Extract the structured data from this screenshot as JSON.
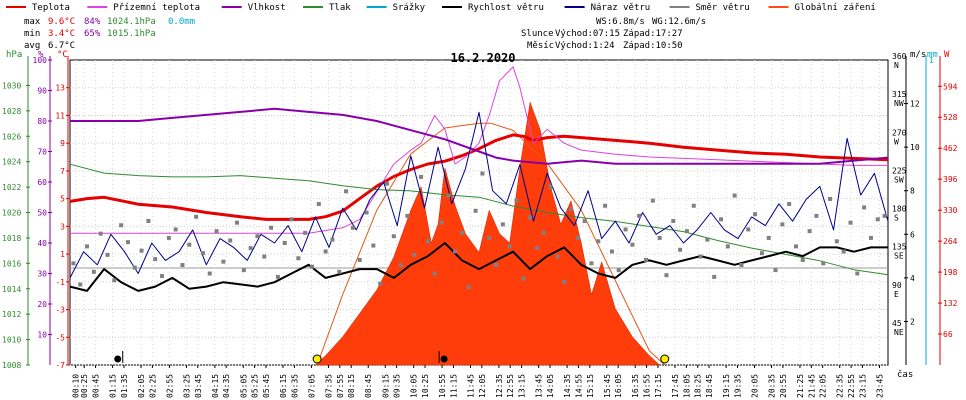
{
  "chart_data": {
    "type": "line",
    "title": "16.2.2020",
    "xlabel": "čas",
    "legend": [
      {
        "name": "Teplota",
        "color": "#e60000"
      },
      {
        "name": "Přízemní teplota",
        "color": "#dd44dd"
      },
      {
        "name": "Vlhkost",
        "color": "#8800aa"
      },
      {
        "name": "Tlak",
        "color": "#2e8b2e"
      },
      {
        "name": "Srážky",
        "color": "#00aacc"
      },
      {
        "name": "Rychlost větru",
        "color": "#000000"
      },
      {
        "name": "Náraz větru",
        "color": "#00008b"
      },
      {
        "name": "Směr větru",
        "color": "#808080"
      },
      {
        "name": "Globální záření",
        "color": "#ff4a1c"
      }
    ],
    "stats": {
      "max": {
        "label": "max",
        "temp": "9.6°C",
        "hum": "84%",
        "press": "1024.1hPa",
        "rain": "0.0mm"
      },
      "min": {
        "label": "min",
        "temp": "3.4°C",
        "hum": "65%",
        "press": "1015.1hPa"
      },
      "avg": {
        "label": "avg",
        "temp": "6.7°C"
      }
    },
    "info": {
      "ws": "WS:6.8m/s",
      "wg": "WG:12.6m/s",
      "sun_label": "Slunce",
      "sun_rise": "Východ:07:15",
      "sun_set": "Západ:17:27",
      "moon_label": "Měsíc",
      "moon_rise": "Východ:1:24",
      "moon_set": "Západ:10:50"
    },
    "axis_units": {
      "hpa": "hPa",
      "pct": "%",
      "degc": "°C",
      "ms": "m/s",
      "mm": "mm",
      "w": "W"
    },
    "x_ticks": [
      "00:10",
      "00:25",
      "00:45",
      "01:15",
      "01:35",
      "02:05",
      "02:25",
      "02:55",
      "03:25",
      "03:45",
      "04:15",
      "04:35",
      "05:05",
      "05:25",
      "05:45",
      "06:15",
      "06:35",
      "07:05",
      "07:35",
      "07:55",
      "08:15",
      "08:45",
      "09:15",
      "09:35",
      "10:05",
      "10:25",
      "10:55",
      "11:15",
      "11:45",
      "12:05",
      "12:35",
      "12:55",
      "13:15",
      "13:45",
      "14:05",
      "14:35",
      "14:55",
      "15:15",
      "15:45",
      "16:05",
      "16:35",
      "16:55",
      "17:15",
      "17:45",
      "18:05",
      "18:25",
      "18:45",
      "19:15",
      "19:35",
      "20:05",
      "20:35",
      "20:55",
      "21:25",
      "21:45",
      "22:05",
      "22:35",
      "22:55",
      "23:15",
      "23:45"
    ],
    "x_range_hours": [
      0,
      24
    ],
    "axes": {
      "pressure": {
        "unit": "hPa",
        "range": [
          1008,
          1032
        ],
        "ticks": [
          1008,
          1010,
          1012,
          1014,
          1016,
          1018,
          1020,
          1022,
          1024,
          1026,
          1028,
          1030
        ]
      },
      "humidity": {
        "unit": "%",
        "range": [
          0,
          100
        ],
        "ticks": [
          10,
          20,
          30,
          40,
          50,
          60,
          70,
          80,
          90,
          100
        ]
      },
      "temperature": {
        "unit": "°C",
        "range": [
          -7,
          15
        ],
        "ticks": [
          -7,
          -5,
          -3,
          -1,
          1,
          3,
          5,
          7,
          9,
          11,
          13
        ]
      },
      "wind_direction": {
        "range": [
          0,
          360
        ],
        "ticks": [
          {
            "v": 360,
            "deg": "360",
            "dir": "N"
          },
          {
            "v": 315,
            "deg": "315",
            "dir": "NW"
          },
          {
            "v": 270,
            "deg": "270",
            "dir": "W"
          },
          {
            "v": 225,
            "deg": "225",
            "dir": "SW"
          },
          {
            "v": 180,
            "deg": "180",
            "dir": "S"
          },
          {
            "v": 135,
            "deg": "135",
            "dir": "SE"
          },
          {
            "v": 90,
            "deg": "90",
            "dir": "E"
          },
          {
            "v": 45,
            "deg": "45",
            "dir": "NE"
          }
        ]
      },
      "wind_speed": {
        "unit": "m/s",
        "range": [
          0,
          14
        ],
        "ticks": [
          2,
          4,
          6,
          8,
          10,
          12
        ]
      },
      "rain": {
        "unit": "mm",
        "range": [
          0,
          1
        ],
        "ticks": [
          1
        ]
      },
      "radiation": {
        "unit": "W",
        "range": [
          0,
          650
        ],
        "ticks": [
          66,
          132,
          198,
          264,
          330,
          396,
          462,
          528,
          594
        ]
      }
    },
    "series": [
      {
        "name": "Teplota",
        "axis": "temperature",
        "x": [
          0,
          0.5,
          1,
          2,
          3,
          4,
          5,
          5.75,
          6.5,
          7,
          7.5,
          8,
          8.5,
          9,
          9.5,
          10,
          10.5,
          11,
          11.5,
          12,
          12.5,
          13,
          13.3,
          13.6,
          14,
          14.5,
          15,
          15.5,
          16,
          16.5,
          17,
          18,
          19,
          20,
          21,
          22,
          23,
          24
        ],
        "y": [
          4.8,
          5,
          5.1,
          4.6,
          4.4,
          4,
          3.7,
          3.5,
          3.5,
          3.5,
          3.7,
          4.1,
          5,
          5.9,
          6.6,
          7.1,
          7.5,
          7.7,
          8.1,
          8.6,
          9.2,
          9.6,
          9.5,
          9.2,
          9.4,
          9.5,
          9.4,
          9.3,
          9.2,
          9.1,
          9,
          8.7,
          8.5,
          8.3,
          8.2,
          8.0,
          7.9,
          7.8
        ]
      },
      {
        "name": "Přízemní teplota",
        "axis": "temperature",
        "x": [
          0,
          1,
          2,
          3,
          4,
          5,
          6,
          6.8,
          7,
          7.5,
          8,
          8.5,
          9,
          9.5,
          10,
          10.3,
          10.7,
          11,
          11.3,
          11.6,
          12,
          12.3,
          12.6,
          12.8,
          13,
          13.2,
          13.4,
          13.6,
          13.8,
          14,
          14.5,
          15,
          16,
          17,
          18,
          19,
          20,
          21,
          22,
          23,
          24
        ],
        "y": [
          2.5,
          2.5,
          2.5,
          2.5,
          2.5,
          2.5,
          2.5,
          2.5,
          2.5,
          2.7,
          2.9,
          3.5,
          5.5,
          7.5,
          8.5,
          9,
          11,
          10,
          7.5,
          8,
          9,
          11,
          13.5,
          14,
          14.5,
          13,
          11,
          9,
          9.5,
          10,
          9,
          8.5,
          8.2,
          8,
          7.9,
          7.8,
          7.7,
          7.6,
          7.5,
          7.4,
          7.4
        ]
      },
      {
        "name": "Vlhkost",
        "axis": "humidity",
        "x": [
          0,
          1,
          2,
          3,
          4,
          5,
          6,
          7,
          8,
          9,
          10,
          11,
          12,
          12.5,
          13,
          14,
          15,
          16,
          17,
          18,
          19,
          20,
          21,
          22,
          23,
          24
        ],
        "y": [
          80,
          80,
          80,
          81,
          82,
          83,
          84,
          83,
          82,
          80,
          77,
          74,
          70,
          68,
          67,
          66,
          67,
          66,
          66,
          66,
          66,
          66,
          66,
          66,
          67,
          68
        ]
      },
      {
        "name": "Tlak",
        "axis": "pressure",
        "x": [
          0,
          1,
          2,
          3,
          4,
          5,
          6,
          7,
          8,
          9,
          10,
          11,
          12,
          13,
          14,
          15,
          16,
          17,
          18,
          19,
          20,
          21,
          22,
          23,
          24
        ],
        "y": [
          1023.8,
          1023.1,
          1022.9,
          1022.8,
          1022.8,
          1022.9,
          1022.7,
          1022.5,
          1022.1,
          1021.8,
          1021.7,
          1021.4,
          1021.2,
          1020.5,
          1020,
          1019.6,
          1019.3,
          1018.9,
          1018.5,
          1017.8,
          1017.2,
          1016.7,
          1016.2,
          1015.5,
          1015.1
        ]
      },
      {
        "name": "Rychlost větru",
        "axis": "wind_speed",
        "x": [
          0,
          0.5,
          1,
          1.5,
          2,
          2.5,
          3,
          3.5,
          4,
          4.5,
          5,
          5.5,
          6,
          6.5,
          7,
          7.5,
          8,
          8.5,
          9,
          9.5,
          10,
          10.5,
          11,
          11.5,
          12,
          12.5,
          13,
          13.5,
          14,
          14.5,
          15,
          15.5,
          16,
          16.5,
          17,
          17.5,
          18,
          18.5,
          19,
          19.5,
          20,
          20.5,
          21,
          21.5,
          22,
          22.5,
          23,
          23.5,
          24
        ],
        "y": [
          3.6,
          3.4,
          4.4,
          3.8,
          3.4,
          3.6,
          4.0,
          3.5,
          3.6,
          3.8,
          3.7,
          3.6,
          3.8,
          4.2,
          4.6,
          4.0,
          4.2,
          4.4,
          4.4,
          4.0,
          4.6,
          5.0,
          5.6,
          4.8,
          4.4,
          4.8,
          5.2,
          4.4,
          5.0,
          5.4,
          4.6,
          4.2,
          4.0,
          4.6,
          4.8,
          4.6,
          4.8,
          5.0,
          4.8,
          4.6,
          4.8,
          5.0,
          5.2,
          5.0,
          5.4,
          5.4,
          5.2,
          5.4,
          5.4
        ]
      },
      {
        "name": "Náraz větru",
        "axis": "wind_speed",
        "x": [
          0,
          0.4,
          0.8,
          1.2,
          1.6,
          2,
          2.4,
          2.8,
          3.2,
          3.6,
          4,
          4.4,
          4.8,
          5.2,
          5.6,
          6,
          6.4,
          6.8,
          7.2,
          7.6,
          8,
          8.4,
          8.8,
          9.2,
          9.6,
          10,
          10.4,
          10.8,
          11.2,
          11.6,
          12,
          12.4,
          12.8,
          13.2,
          13.6,
          14,
          14.4,
          14.8,
          15.2,
          15.6,
          16,
          16.4,
          16.8,
          17.2,
          17.6,
          18,
          18.4,
          18.8,
          19.2,
          19.6,
          20,
          20.4,
          20.8,
          21.2,
          21.6,
          22,
          22.4,
          22.8,
          23.2,
          23.6,
          24
        ],
        "y": [
          4,
          5.2,
          4.6,
          6,
          5.2,
          4.2,
          5.6,
          4.8,
          5.2,
          6.2,
          4.6,
          5.8,
          5.4,
          4.8,
          6,
          5.6,
          6.4,
          5.2,
          6.8,
          5.4,
          7.2,
          6.2,
          7.6,
          8.4,
          6.4,
          9.6,
          7.2,
          10,
          7.4,
          9,
          11.6,
          8,
          7.4,
          9.2,
          6.6,
          8.8,
          7.2,
          6.4,
          8,
          5.8,
          6.6,
          5.6,
          7,
          6,
          6.4,
          5.6,
          6.2,
          7,
          6.2,
          5.8,
          6.8,
          6.4,
          7.4,
          6.6,
          7.6,
          8.2,
          6.2,
          10.4,
          7.8,
          8.8,
          6.6
        ]
      },
      {
        "name": "Globální záření",
        "axis": "radiation",
        "x": [
          7.2,
          7.5,
          8,
          8.5,
          9,
          9.5,
          10,
          10.3,
          10.6,
          10.8,
          11.0,
          11.3,
          11.6,
          12,
          12.3,
          12.6,
          12.9,
          13.2,
          13.5,
          13.8,
          14.1,
          14.4,
          14.7,
          15,
          15.3,
          15.6,
          16,
          16.5,
          17,
          17.3
        ],
        "y": [
          0,
          20,
          60,
          110,
          160,
          230,
          330,
          380,
          260,
          300,
          420,
          340,
          280,
          240,
          330,
          280,
          260,
          420,
          560,
          500,
          380,
          300,
          350,
          260,
          150,
          220,
          120,
          60,
          20,
          0
        ]
      },
      {
        "name": "Clear-sky radiation",
        "axis": "radiation",
        "x": [
          7.25,
          8,
          9,
          10,
          11,
          12,
          12.35,
          13,
          14,
          15,
          16,
          17,
          17.45
        ],
        "y": [
          0,
          150,
          330,
          450,
          505,
          515,
          515,
          500,
          430,
          330,
          180,
          30,
          0
        ]
      }
    ],
    "wind_direction_points": {
      "x": [
        0.1,
        0.3,
        0.5,
        0.7,
        0.9,
        1.1,
        1.3,
        1.5,
        1.7,
        1.9,
        2.1,
        2.3,
        2.5,
        2.7,
        2.9,
        3.1,
        3.3,
        3.5,
        3.7,
        3.9,
        4.1,
        4.3,
        4.5,
        4.7,
        4.9,
        5.1,
        5.3,
        5.5,
        5.7,
        5.9,
        6.1,
        6.3,
        6.5,
        6.7,
        6.9,
        7.1,
        7.3,
        7.5,
        7.7,
        7.9,
        8.1,
        8.3,
        8.5,
        8.7,
        8.9,
        9.1,
        9.3,
        9.5,
        9.7,
        9.9,
        10.1,
        10.3,
        10.5,
        10.7,
        10.9,
        11.1,
        11.3,
        11.5,
        11.7,
        11.9,
        12.1,
        12.3,
        12.5,
        12.7,
        12.9,
        13.1,
        13.3,
        13.5,
        13.7,
        13.9,
        14.1,
        14.3,
        14.5,
        14.7,
        14.9,
        15.1,
        15.3,
        15.5,
        15.7,
        15.9,
        16.1,
        16.3,
        16.5,
        16.7,
        16.9,
        17.1,
        17.3,
        17.5,
        17.7,
        17.9,
        18.1,
        18.3,
        18.5,
        18.7,
        18.9,
        19.1,
        19.3,
        19.5,
        19.7,
        19.9,
        20.1,
        20.3,
        20.5,
        20.7,
        20.9,
        21.1,
        21.3,
        21.5,
        21.7,
        21.9,
        22.1,
        22.3,
        22.5,
        22.7,
        22.9,
        23.1,
        23.3,
        23.5,
        23.7,
        23.9
      ],
      "y": [
        120,
        95,
        140,
        110,
        155,
        130,
        100,
        165,
        145,
        115,
        135,
        170,
        125,
        105,
        150,
        160,
        118,
        142,
        175,
        132,
        108,
        158,
        122,
        147,
        168,
        112,
        138,
        152,
        128,
        162,
        104,
        144,
        172,
        126,
        156,
        116,
        190,
        134,
        148,
        110,
        205,
        162,
        124,
        180,
        141,
        96,
        214,
        152,
        118,
        176,
        130,
        222,
        146,
        108,
        168,
        200,
        134,
        156,
        92,
        182,
        226,
        150,
        118,
        166,
        140,
        194,
        102,
        174,
        138,
        156,
        210,
        128,
        98,
        184,
        150,
        170,
        120,
        146,
        188,
        134,
        112,
        160,
        142,
        176,
        124,
        194,
        150,
        106,
        170,
        136,
        158,
        188,
        128,
        148,
        104,
        172,
        140,
        200,
        118,
        160,
        178,
        132,
        150,
        112,
        166,
        190,
        140,
        124,
        158,
        176,
        120,
        196,
        146,
        134,
        168,
        108,
        186,
        150,
        172,
        176
      ]
    },
    "markers": {
      "moonrise_h": 1.4,
      "moonset_h": 10.83,
      "sunrise_h": 7.25,
      "sunset_h": 17.45
    },
    "grid": true
  }
}
